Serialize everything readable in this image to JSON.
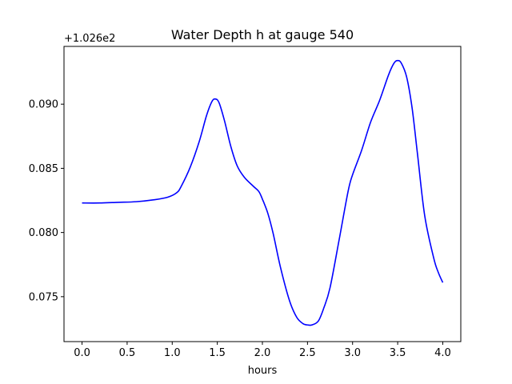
{
  "chart_data": {
    "type": "line",
    "title": "Water Depth h at gauge 540",
    "xlabel": "hours",
    "ylabel": "",
    "offset_label": "+1.026e2",
    "y_offset": 102.6,
    "xlim": [
      -0.2,
      4.2
    ],
    "ylim": [
      0.0715,
      0.0945
    ],
    "x_ticks": [
      0.0,
      0.5,
      1.0,
      1.5,
      2.0,
      2.5,
      3.0,
      3.5,
      4.0
    ],
    "x_tick_labels": [
      "0.0",
      "0.5",
      "1.0",
      "1.5",
      "2.0",
      "2.5",
      "3.0",
      "3.5",
      "4.0"
    ],
    "y_ticks": [
      0.075,
      0.08,
      0.085,
      0.09
    ],
    "y_tick_labels": [
      "0.075",
      "0.080",
      "0.085",
      "0.090"
    ],
    "grid": false,
    "series": [
      {
        "color": "#0000ff",
        "x": [
          0.0,
          0.2,
          0.4,
          0.6,
          0.8,
          0.95,
          1.05,
          1.1,
          1.2,
          1.3,
          1.38,
          1.44,
          1.48,
          1.52,
          1.58,
          1.65,
          1.72,
          1.8,
          1.9,
          1.96,
          2.0,
          2.06,
          2.12,
          2.2,
          2.3,
          2.38,
          2.45,
          2.5,
          2.55,
          2.62,
          2.68,
          2.75,
          2.85,
          2.95,
          3.0,
          3.1,
          3.2,
          3.3,
          3.4,
          3.46,
          3.5,
          3.54,
          3.6,
          3.66,
          3.72,
          3.8,
          3.9,
          3.95,
          4.0
        ],
        "y": [
          0.0823,
          0.0823,
          0.08235,
          0.0824,
          0.08255,
          0.08275,
          0.0831,
          0.0836,
          0.0851,
          0.0871,
          0.0891,
          0.0902,
          0.0904,
          0.0901,
          0.0887,
          0.0867,
          0.0852,
          0.0843,
          0.0836,
          0.0832,
          0.0826,
          0.0815,
          0.0799,
          0.0773,
          0.0747,
          0.0734,
          0.0729,
          0.0728,
          0.0728,
          0.0731,
          0.0741,
          0.0757,
          0.0794,
          0.0832,
          0.0845,
          0.0864,
          0.0886,
          0.0903,
          0.0923,
          0.0932,
          0.0934,
          0.0932,
          0.0921,
          0.0897,
          0.0861,
          0.0813,
          0.078,
          0.0769,
          0.0761
        ]
      }
    ]
  }
}
